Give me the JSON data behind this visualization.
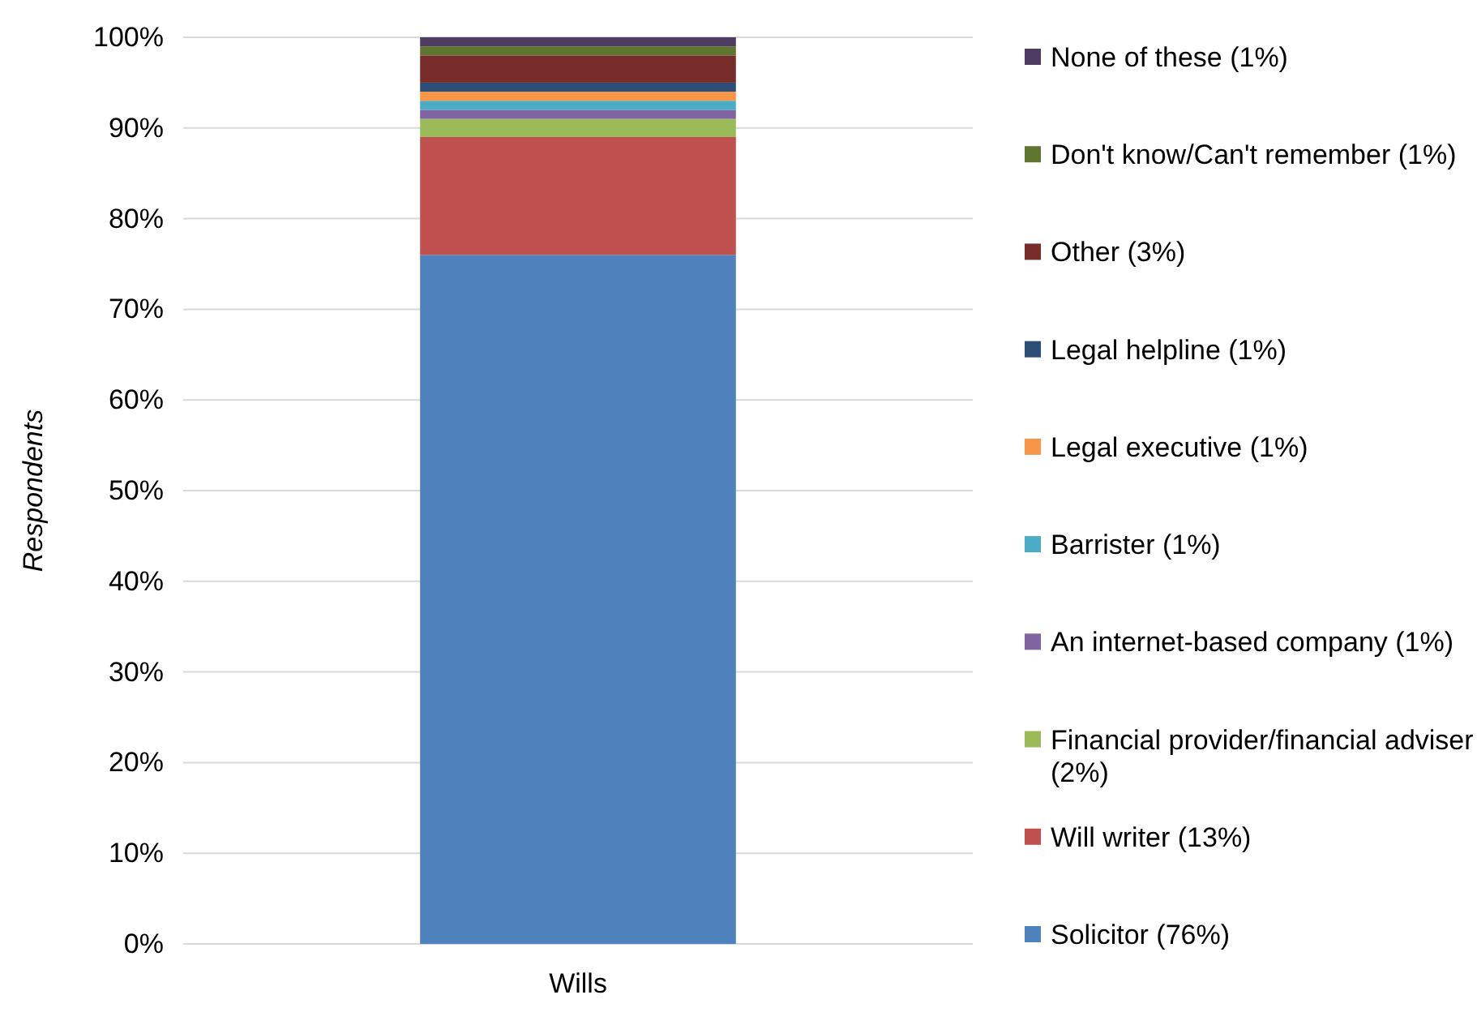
{
  "chart_data": {
    "type": "bar",
    "stacked": true,
    "categories": [
      "Wills"
    ],
    "ylabel": "Respondents",
    "ylim": [
      0,
      100
    ],
    "yticks": [
      {
        "value": 0,
        "label": "0%"
      },
      {
        "value": 10,
        "label": "10%"
      },
      {
        "value": 20,
        "label": "20%"
      },
      {
        "value": 30,
        "label": "30%"
      },
      {
        "value": 40,
        "label": "40%"
      },
      {
        "value": 50,
        "label": "50%"
      },
      {
        "value": 60,
        "label": "60%"
      },
      {
        "value": 70,
        "label": "70%"
      },
      {
        "value": 80,
        "label": "80%"
      },
      {
        "value": 90,
        "label": "90%"
      },
      {
        "value": 100,
        "label": "100%"
      }
    ],
    "grid": "y",
    "legend": "right",
    "series": [
      {
        "name": "Solicitor (76%)",
        "color": "#4f81bd",
        "values": [
          76
        ]
      },
      {
        "name": "Will writer (13%)",
        "color": "#c0504d",
        "values": [
          13
        ]
      },
      {
        "name": "Financial provider/financial adviser (2%)",
        "color": "#9bbb59",
        "values": [
          2
        ]
      },
      {
        "name": "An internet-based company (1%)",
        "color": "#8064a2",
        "values": [
          1
        ]
      },
      {
        "name": "Barrister (1%)",
        "color": "#4bacc6",
        "values": [
          1
        ]
      },
      {
        "name": "Legal executive (1%)",
        "color": "#f79646",
        "values": [
          1
        ]
      },
      {
        "name": "Legal helpline (1%)",
        "color": "#2c4d75",
        "values": [
          1
        ]
      },
      {
        "name": "Other (3%)",
        "color": "#772c2a",
        "values": [
          3
        ]
      },
      {
        "name": "Don't know/Can't remember (1%)",
        "color": "#5f7530",
        "values": [
          1
        ]
      },
      {
        "name": "None of these (1%)",
        "color": "#4d3b62",
        "values": [
          1
        ]
      }
    ]
  }
}
